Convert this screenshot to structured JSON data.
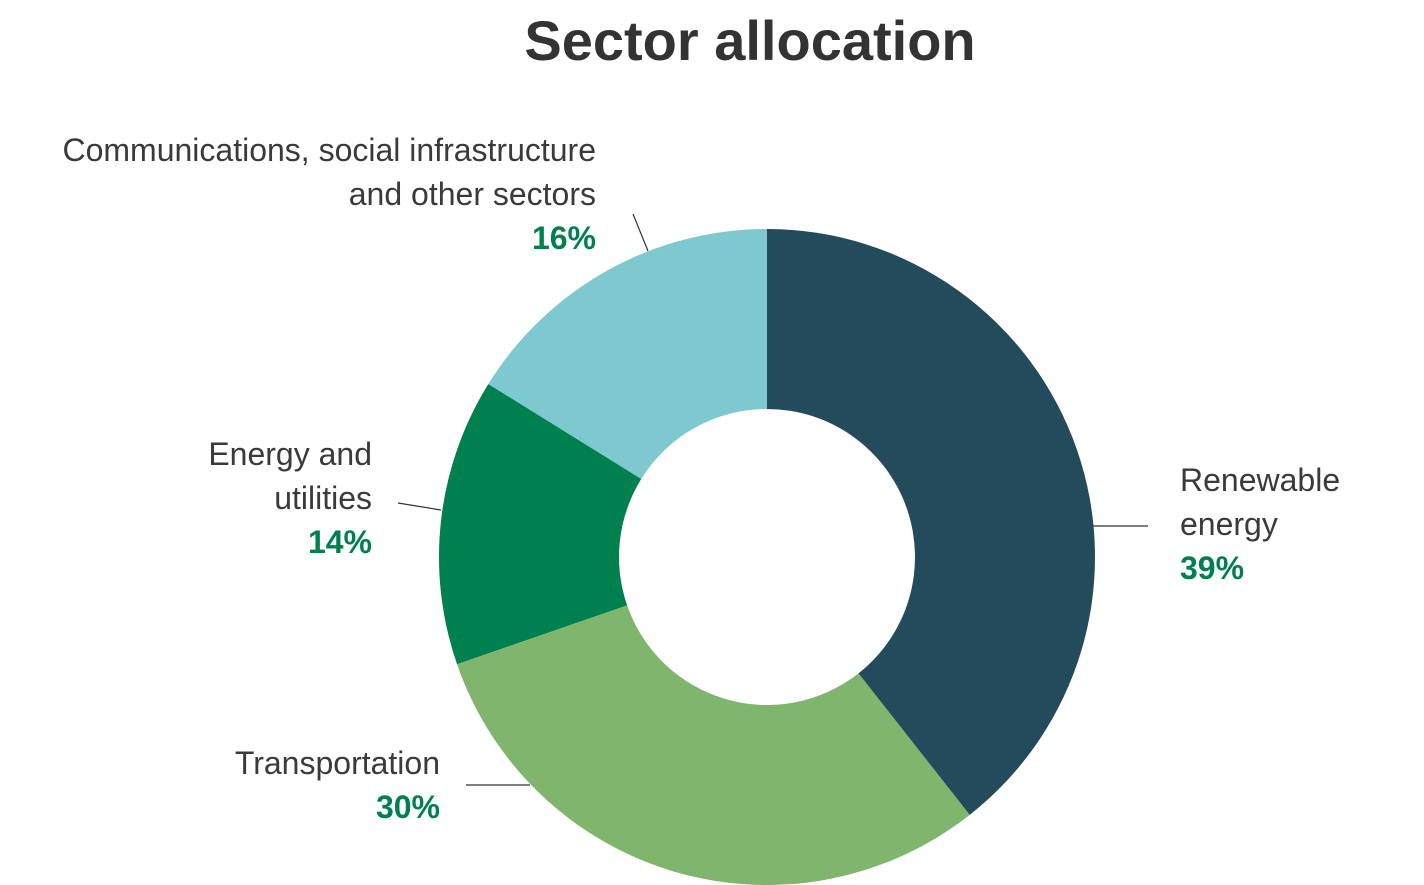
{
  "chart_data": {
    "type": "donut",
    "title": "Sector allocation",
    "categories": [
      "Renewable energy",
      "Transportation",
      "Energy and utilities",
      "Communications, social infrastructure and other sectors"
    ],
    "values": [
      39,
      30,
      14,
      16
    ],
    "value_labels": [
      "39%",
      "30%",
      "14%",
      "16%"
    ],
    "colors": [
      "#244b5c",
      "#7fb56d",
      "#007f4f",
      "#7ec8d0"
    ]
  }
}
